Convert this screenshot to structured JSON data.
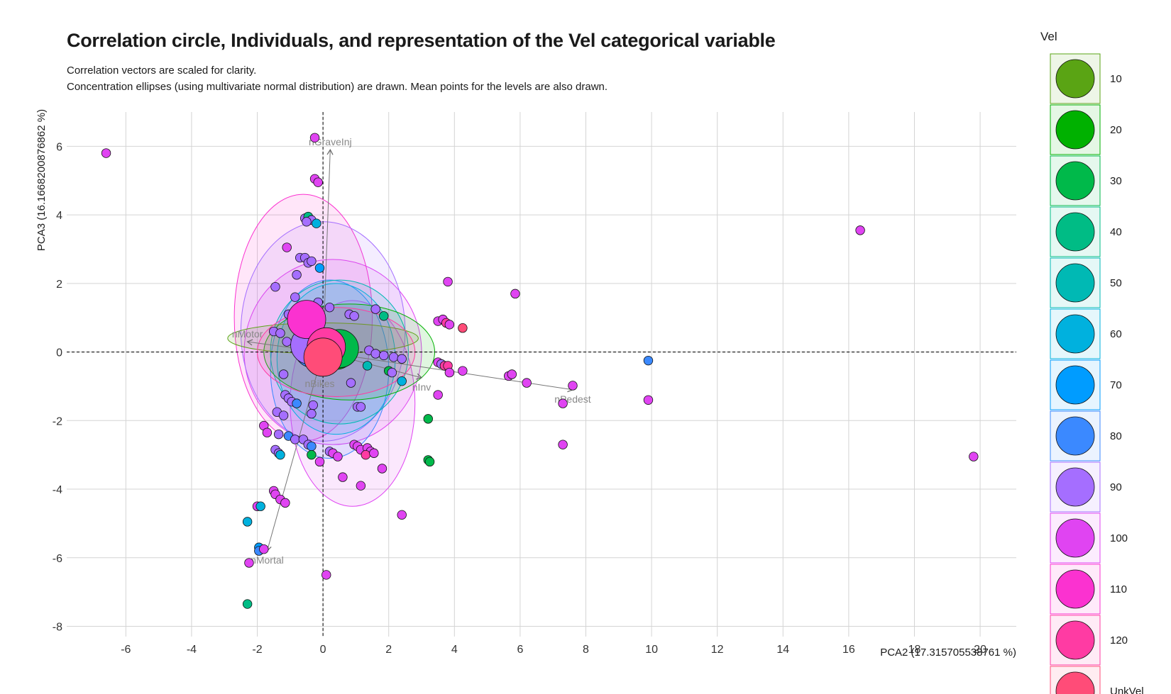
{
  "chart_data": {
    "type": "scatter",
    "title": "Correlation circle, Individuals, and representation of the Vel categorical variable",
    "subtitle_lines": [
      "Correlation vectors are scaled for clarity.",
      "Concentration ellipses (using multivariate normal distribution) are drawn. Mean points for the levels are also drawn."
    ],
    "xlabel": "PCA2 (17.315705538761 %)",
    "ylabel": "PCA3 (16.1668200876862 %)",
    "xlim": [
      -7.8,
      21.1
    ],
    "ylim": [
      -8.3,
      7.0
    ],
    "x_ticks": [
      -6,
      -4,
      -2,
      0,
      2,
      4,
      6,
      8,
      10,
      12,
      14,
      16,
      18,
      20
    ],
    "y_ticks": [
      -8,
      -6,
      -4,
      -2,
      0,
      2,
      4,
      6
    ],
    "grid": true,
    "legend": {
      "title": "Vel",
      "placement": "right",
      "levels": [
        {
          "label": "10",
          "color": "#5aa414"
        },
        {
          "label": "20",
          "color": "#00b100"
        },
        {
          "label": "30",
          "color": "#00b94a"
        },
        {
          "label": "40",
          "color": "#00bc85"
        },
        {
          "label": "50",
          "color": "#00b9b4"
        },
        {
          "label": "60",
          "color": "#00b1de"
        },
        {
          "label": "70",
          "color": "#009cff"
        },
        {
          "label": "80",
          "color": "#3b89ff"
        },
        {
          "label": "90",
          "color": "#a56eff"
        },
        {
          "label": "100",
          "color": "#e044f2"
        },
        {
          "label": "110",
          "color": "#fb32d0"
        },
        {
          "label": "120",
          "color": "#ff3ba3"
        },
        {
          "label": "UnkVel",
          "color": "#ff4c78"
        }
      ]
    },
    "vectors": [
      {
        "name": "nGraveInj",
        "x": 0.22,
        "y": 5.9
      },
      {
        "name": "nPedest",
        "x": 7.6,
        "y": -1.1
      },
      {
        "name": "nMortal",
        "x": -1.7,
        "y": -5.8
      },
      {
        "name": "nMotor",
        "x": -2.3,
        "y": 0.3
      },
      {
        "name": "nBikes",
        "x": -0.1,
        "y": -0.65
      },
      {
        "name": "nInv",
        "x": 3.0,
        "y": -0.75
      }
    ],
    "ellipses": [
      {
        "cx": 0.3,
        "cy": 0.0,
        "rx": 2.7,
        "ry": 2.7,
        "color": "#e044f2"
      },
      {
        "cx": -0.6,
        "cy": 1.0,
        "rx": 2.1,
        "ry": 3.6,
        "color": "#fb32d0"
      },
      {
        "cx": 0.0,
        "cy": 0.6,
        "rx": 2.5,
        "ry": 3.2,
        "color": "#a56eff"
      },
      {
        "cx": 0.9,
        "cy": -1.5,
        "rx": 1.9,
        "ry": 3.0,
        "color": "#e044f2"
      },
      {
        "cx": 0.2,
        "cy": -0.5,
        "rx": 1.8,
        "ry": 2.6,
        "color": "#3b89ff"
      },
      {
        "cx": 0.4,
        "cy": -0.2,
        "rx": 1.8,
        "ry": 2.2,
        "color": "#00b1de"
      },
      {
        "cx": 0.5,
        "cy": 0.0,
        "rx": 2.1,
        "ry": 2.1,
        "color": "#00b9b4"
      },
      {
        "cx": 0.8,
        "cy": 0.0,
        "rx": 2.6,
        "ry": 1.4,
        "color": "#00b100"
      },
      {
        "cx": 0.0,
        "cy": 0.4,
        "rx": 2.9,
        "ry": 0.45,
        "color": "#5aa414"
      },
      {
        "cx": 0.4,
        "cy": 0.0,
        "rx": 2.4,
        "ry": 1.3,
        "color": "#ff3ba3"
      }
    ],
    "means": [
      {
        "x": 0.4,
        "y": 0.05,
        "color": "#00b100"
      },
      {
        "x": 0.5,
        "y": 0.1,
        "color": "#00b94a"
      },
      {
        "x": -0.3,
        "y": 0.1,
        "color": "#3b89ff"
      },
      {
        "x": -0.4,
        "y": 0.2,
        "color": "#a56eff"
      },
      {
        "x": -0.5,
        "y": 0.95,
        "color": "#fb32d0"
      },
      {
        "x": 0.1,
        "y": 0.15,
        "color": "#ff3ba3"
      },
      {
        "x": 0.0,
        "y": -0.15,
        "color": "#ff4c78"
      }
    ],
    "points": [
      {
        "x": -6.6,
        "y": 5.8,
        "color": "#e044f2"
      },
      {
        "x": -0.25,
        "y": 6.25,
        "color": "#e044f2"
      },
      {
        "x": -0.25,
        "y": 5.05,
        "color": "#e044f2"
      },
      {
        "x": -0.15,
        "y": 4.95,
        "color": "#e044f2"
      },
      {
        "x": -0.55,
        "y": 3.9,
        "color": "#a56eff"
      },
      {
        "x": -0.45,
        "y": 3.95,
        "color": "#00bc85"
      },
      {
        "x": -0.35,
        "y": 3.85,
        "color": "#a56eff"
      },
      {
        "x": -0.5,
        "y": 3.8,
        "color": "#a56eff"
      },
      {
        "x": -0.2,
        "y": 3.75,
        "color": "#00b1de"
      },
      {
        "x": -1.1,
        "y": 3.05,
        "color": "#e044f2"
      },
      {
        "x": -0.7,
        "y": 2.75,
        "color": "#a56eff"
      },
      {
        "x": -0.55,
        "y": 2.75,
        "color": "#a56eff"
      },
      {
        "x": -0.45,
        "y": 2.6,
        "color": "#a56eff"
      },
      {
        "x": -0.35,
        "y": 2.65,
        "color": "#a56eff"
      },
      {
        "x": -0.1,
        "y": 2.45,
        "color": "#009cff"
      },
      {
        "x": -0.8,
        "y": 2.25,
        "color": "#a56eff"
      },
      {
        "x": -1.45,
        "y": 1.9,
        "color": "#a56eff"
      },
      {
        "x": -0.85,
        "y": 1.6,
        "color": "#a56eff"
      },
      {
        "x": -0.15,
        "y": 1.45,
        "color": "#a56eff"
      },
      {
        "x": 0.2,
        "y": 1.3,
        "color": "#a56eff"
      },
      {
        "x": -1.05,
        "y": 1.1,
        "color": "#a56eff"
      },
      {
        "x": 0.8,
        "y": 1.1,
        "color": "#a56eff"
      },
      {
        "x": 0.95,
        "y": 1.05,
        "color": "#a56eff"
      },
      {
        "x": 1.6,
        "y": 1.25,
        "color": "#a56eff"
      },
      {
        "x": 1.85,
        "y": 1.05,
        "color": "#00bc85"
      },
      {
        "x": 3.8,
        "y": 2.05,
        "color": "#e044f2"
      },
      {
        "x": 5.85,
        "y": 1.7,
        "color": "#e044f2"
      },
      {
        "x": 16.35,
        "y": 3.55,
        "color": "#e044f2"
      },
      {
        "x": 3.5,
        "y": 0.9,
        "color": "#e044f2"
      },
      {
        "x": 3.65,
        "y": 0.95,
        "color": "#e044f2"
      },
      {
        "x": 3.75,
        "y": 0.85,
        "color": "#ff3ba3"
      },
      {
        "x": 3.85,
        "y": 0.8,
        "color": "#e044f2"
      },
      {
        "x": 4.25,
        "y": 0.7,
        "color": "#ff4c78"
      },
      {
        "x": -1.5,
        "y": 0.6,
        "color": "#a56eff"
      },
      {
        "x": -1.3,
        "y": 0.55,
        "color": "#a56eff"
      },
      {
        "x": -1.1,
        "y": 0.3,
        "color": "#a56eff"
      },
      {
        "x": 1.4,
        "y": 0.05,
        "color": "#a56eff"
      },
      {
        "x": 1.6,
        "y": -0.05,
        "color": "#a56eff"
      },
      {
        "x": 1.85,
        "y": -0.1,
        "color": "#a56eff"
      },
      {
        "x": 2.15,
        "y": -0.15,
        "color": "#a56eff"
      },
      {
        "x": 2.4,
        "y": -0.2,
        "color": "#a56eff"
      },
      {
        "x": 1.35,
        "y": -0.4,
        "color": "#00b9b4"
      },
      {
        "x": 2.0,
        "y": -0.55,
        "color": "#00b94a"
      },
      {
        "x": 2.1,
        "y": -0.6,
        "color": "#a56eff"
      },
      {
        "x": 2.4,
        "y": -0.85,
        "color": "#00b1de"
      },
      {
        "x": 3.5,
        "y": -0.3,
        "color": "#e044f2"
      },
      {
        "x": 3.6,
        "y": -0.35,
        "color": "#a56eff"
      },
      {
        "x": 3.7,
        "y": -0.4,
        "color": "#ff3ba3"
      },
      {
        "x": 3.8,
        "y": -0.4,
        "color": "#ff3ba3"
      },
      {
        "x": 3.85,
        "y": -0.6,
        "color": "#e044f2"
      },
      {
        "x": 4.25,
        "y": -0.55,
        "color": "#e044f2"
      },
      {
        "x": 5.65,
        "y": -0.7,
        "color": "#e044f2"
      },
      {
        "x": 5.75,
        "y": -0.65,
        "color": "#e044f2"
      },
      {
        "x": 6.2,
        "y": -0.9,
        "color": "#e044f2"
      },
      {
        "x": 7.6,
        "y": -0.98,
        "color": "#e044f2"
      },
      {
        "x": 9.9,
        "y": -0.25,
        "color": "#3b89ff"
      },
      {
        "x": 9.9,
        "y": -1.4,
        "color": "#e044f2"
      },
      {
        "x": 7.3,
        "y": -1.5,
        "color": "#e044f2"
      },
      {
        "x": 3.5,
        "y": -1.25,
        "color": "#e044f2"
      },
      {
        "x": 7.3,
        "y": -2.7,
        "color": "#e044f2"
      },
      {
        "x": 19.8,
        "y": -3.05,
        "color": "#e044f2"
      },
      {
        "x": -1.2,
        "y": -0.65,
        "color": "#a56eff"
      },
      {
        "x": 0.85,
        "y": -0.9,
        "color": "#a56eff"
      },
      {
        "x": -1.15,
        "y": -1.25,
        "color": "#a56eff"
      },
      {
        "x": -1.05,
        "y": -1.35,
        "color": "#a56eff"
      },
      {
        "x": -0.95,
        "y": -1.45,
        "color": "#a56eff"
      },
      {
        "x": -0.8,
        "y": -1.5,
        "color": "#3b89ff"
      },
      {
        "x": -0.3,
        "y": -1.55,
        "color": "#a56eff"
      },
      {
        "x": 1.05,
        "y": -1.6,
        "color": "#a56eff"
      },
      {
        "x": 1.15,
        "y": -1.6,
        "color": "#a56eff"
      },
      {
        "x": -1.4,
        "y": -1.75,
        "color": "#a56eff"
      },
      {
        "x": -1.2,
        "y": -1.85,
        "color": "#a56eff"
      },
      {
        "x": -0.35,
        "y": -1.8,
        "color": "#a56eff"
      },
      {
        "x": 3.2,
        "y": -1.95,
        "color": "#00b94a"
      },
      {
        "x": -1.8,
        "y": -2.15,
        "color": "#e044f2"
      },
      {
        "x": -1.7,
        "y": -2.35,
        "color": "#e044f2"
      },
      {
        "x": -1.35,
        "y": -2.4,
        "color": "#a56eff"
      },
      {
        "x": -1.05,
        "y": -2.45,
        "color": "#3b89ff"
      },
      {
        "x": -0.85,
        "y": -2.55,
        "color": "#a56eff"
      },
      {
        "x": -0.6,
        "y": -2.55,
        "color": "#a56eff"
      },
      {
        "x": -0.45,
        "y": -2.7,
        "color": "#a56eff"
      },
      {
        "x": -0.35,
        "y": -2.75,
        "color": "#3b89ff"
      },
      {
        "x": -1.45,
        "y": -2.85,
        "color": "#a56eff"
      },
      {
        "x": -1.35,
        "y": -2.95,
        "color": "#a56eff"
      },
      {
        "x": -1.3,
        "y": -3.0,
        "color": "#00b1de"
      },
      {
        "x": -0.35,
        "y": -3.0,
        "color": "#00b94a"
      },
      {
        "x": 0.2,
        "y": -2.9,
        "color": "#a56eff"
      },
      {
        "x": 0.3,
        "y": -2.95,
        "color": "#e044f2"
      },
      {
        "x": 0.45,
        "y": -3.05,
        "color": "#e044f2"
      },
      {
        "x": 0.95,
        "y": -2.7,
        "color": "#e044f2"
      },
      {
        "x": 1.05,
        "y": -2.75,
        "color": "#e044f2"
      },
      {
        "x": 1.15,
        "y": -2.85,
        "color": "#e044f2"
      },
      {
        "x": 1.35,
        "y": -2.8,
        "color": "#e044f2"
      },
      {
        "x": 1.45,
        "y": -2.9,
        "color": "#e044f2"
      },
      {
        "x": 1.3,
        "y": -3.0,
        "color": "#ff3ba3"
      },
      {
        "x": 1.55,
        "y": -2.95,
        "color": "#e044f2"
      },
      {
        "x": -0.1,
        "y": -3.2,
        "color": "#e044f2"
      },
      {
        "x": 3.2,
        "y": -3.15,
        "color": "#00b94a"
      },
      {
        "x": 3.25,
        "y": -3.2,
        "color": "#00b94a"
      },
      {
        "x": 1.8,
        "y": -3.4,
        "color": "#e044f2"
      },
      {
        "x": 0.6,
        "y": -3.65,
        "color": "#e044f2"
      },
      {
        "x": 1.15,
        "y": -3.9,
        "color": "#e044f2"
      },
      {
        "x": -1.5,
        "y": -4.05,
        "color": "#e044f2"
      },
      {
        "x": -1.45,
        "y": -4.15,
        "color": "#e044f2"
      },
      {
        "x": -1.3,
        "y": -4.3,
        "color": "#e044f2"
      },
      {
        "x": -1.15,
        "y": -4.4,
        "color": "#e044f2"
      },
      {
        "x": -2.0,
        "y": -4.5,
        "color": "#e044f2"
      },
      {
        "x": -1.9,
        "y": -4.5,
        "color": "#00b1de"
      },
      {
        "x": 2.4,
        "y": -4.75,
        "color": "#e044f2"
      },
      {
        "x": -2.3,
        "y": -4.95,
        "color": "#00b1de"
      },
      {
        "x": -1.95,
        "y": -5.7,
        "color": "#009cff"
      },
      {
        "x": -1.95,
        "y": -5.8,
        "color": "#3b89ff"
      },
      {
        "x": -1.8,
        "y": -5.75,
        "color": "#e044f2"
      },
      {
        "x": -2.25,
        "y": -6.15,
        "color": "#e044f2"
      },
      {
        "x": 0.1,
        "y": -6.5,
        "color": "#e044f2"
      },
      {
        "x": -2.3,
        "y": -7.35,
        "color": "#00bc85"
      }
    ]
  }
}
